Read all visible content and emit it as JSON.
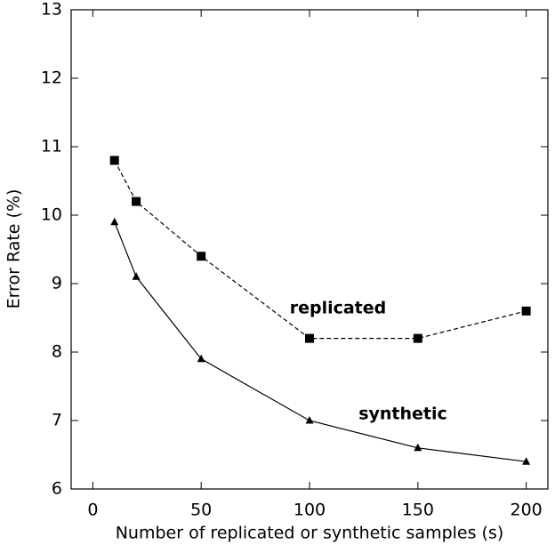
{
  "chart_data": {
    "type": "line",
    "x_label": "Number of replicated or synthetic samples (s)",
    "y_label": "Error Rate (%)",
    "x": [
      10,
      20,
      50,
      100,
      150,
      200
    ],
    "series": [
      {
        "name": "replicated",
        "color": "#000000",
        "linestyle": "dashed",
        "marker": "square",
        "values": [
          10.8,
          10.2,
          9.4,
          8.2,
          8.2,
          8.6
        ]
      },
      {
        "name": "synthetic",
        "color": "#000000",
        "linestyle": "solid",
        "marker": "triangle",
        "values": [
          9.9,
          9.1,
          7.9,
          7.0,
          6.6,
          6.4
        ]
      }
    ],
    "xlim": [
      -10,
      210
    ],
    "xticks": [
      0,
      50,
      100,
      150,
      200
    ],
    "ylim": [
      6,
      13
    ],
    "yticks": [
      6,
      7,
      8,
      9,
      10,
      11,
      12,
      13
    ],
    "grid": false
  }
}
